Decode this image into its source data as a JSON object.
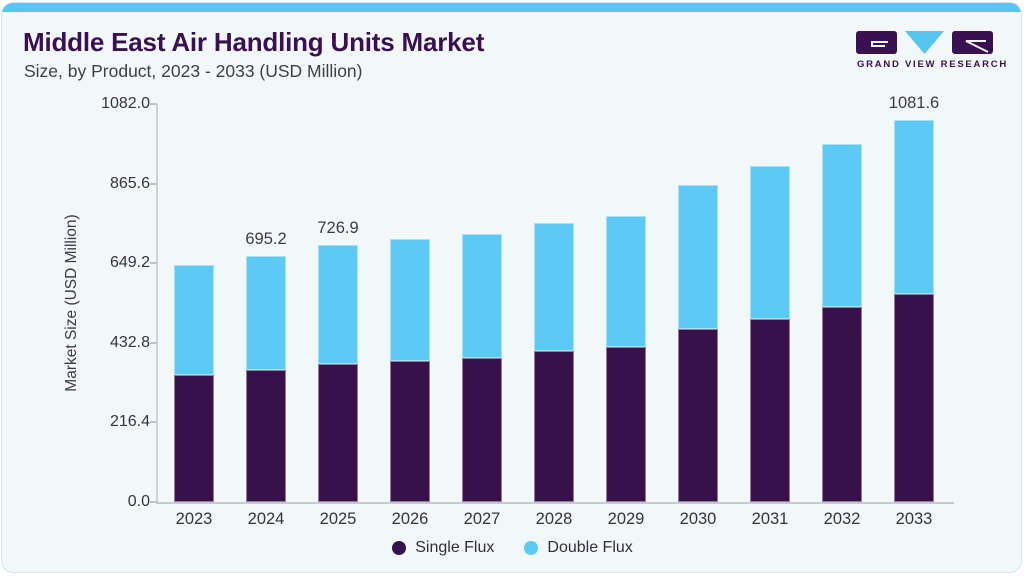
{
  "page": {
    "top_strip_color": "#58c6f0",
    "card_bg": "#f2f7fa",
    "border_color": "#d8e3ec",
    "title_color": "#3a1053"
  },
  "header": {
    "title": "Middle East Air Handling Units Market",
    "subtitle": "Size, by Product, 2023 - 2033 (USD Million)"
  },
  "logo": {
    "wordmark": "GRAND VIEW RESEARCH",
    "purple": "#3a1053",
    "blue": "#56c5ef"
  },
  "chart_data": {
    "type": "bar",
    "stacked": true,
    "title": "Middle East Air Handling Units Market",
    "subtitle": "Size, by Product, 2023 - 2033 (USD Million)",
    "xlabel": "",
    "ylabel": "Market Size (USD Million)",
    "categories": [
      "2023",
      "2024",
      "2025",
      "2026",
      "2027",
      "2028",
      "2029",
      "2030",
      "2031",
      "2032",
      "2033"
    ],
    "series": [
      {
        "name": "Single Flux",
        "color": "#36114a",
        "values": [
          358.8,
          373.0,
          390.0,
          398.5,
          408.1,
          427.9,
          439.2,
          489.0,
          517.3,
          550.4,
          588.1
        ]
      },
      {
        "name": "Double Flux",
        "color": "#5cc9f4",
        "values": [
          311.5,
          322.2,
          336.9,
          345.2,
          348.9,
          362.2,
          370.7,
          408.7,
          434.1,
          462.2,
          493.5
        ]
      }
    ],
    "totals": [
      670.3,
      695.2,
      726.9,
      743.7,
      757.0,
      790.1,
      809.9,
      897.7,
      951.4,
      1012.6,
      1081.6
    ],
    "total_labels": {
      "2024": "695.2",
      "2025": "726.9",
      "2033": "1081.6"
    },
    "y_ticks": [
      "0.0",
      "216.4",
      "432.8",
      "649.2",
      "865.6",
      "1082.0"
    ],
    "ylim": [
      0,
      1082.0
    ],
    "grid": false,
    "legend_position": "bottom",
    "legend": [
      "Single Flux",
      "Double Flux"
    ]
  }
}
